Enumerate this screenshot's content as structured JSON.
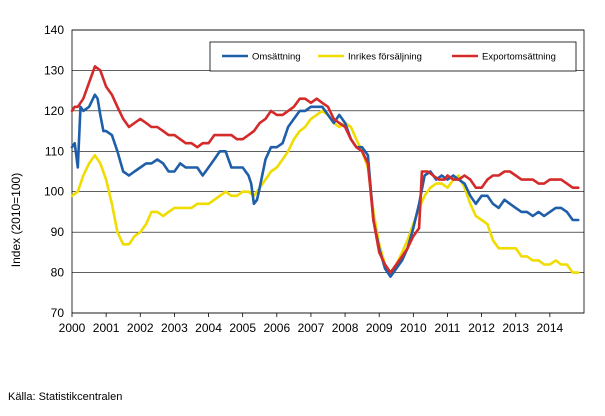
{
  "source_label": "Källa: Statistikcentralen",
  "chart_data": {
    "type": "line",
    "title": "",
    "xlabel": "",
    "ylabel": "Index (2010=100)",
    "ylim": [
      70,
      140
    ],
    "yticks": [
      70,
      80,
      90,
      100,
      110,
      120,
      130,
      140
    ],
    "xlim": [
      2000,
      2015
    ],
    "xticks": [
      2000,
      2001,
      2002,
      2003,
      2004,
      2005,
      2006,
      2007,
      2008,
      2009,
      2010,
      2011,
      2012,
      2013,
      2014
    ],
    "grid": "horizontal",
    "legend_placement": "top-right",
    "series": [
      {
        "name": "Omsättning",
        "color": "#1f5ea8",
        "points": [
          [
            2000.0,
            111
          ],
          [
            2000.08,
            112
          ],
          [
            2000.17,
            106
          ],
          [
            2000.25,
            121
          ],
          [
            2000.33,
            120
          ],
          [
            2000.5,
            121
          ],
          [
            2000.67,
            124
          ],
          [
            2000.75,
            123
          ],
          [
            2000.83,
            119
          ],
          [
            2000.92,
            115
          ],
          [
            2001.0,
            115
          ],
          [
            2001.17,
            114
          ],
          [
            2001.33,
            110
          ],
          [
            2001.5,
            105
          ],
          [
            2001.67,
            104
          ],
          [
            2001.83,
            105
          ],
          [
            2002.0,
            106
          ],
          [
            2002.17,
            107
          ],
          [
            2002.33,
            107
          ],
          [
            2002.5,
            108
          ],
          [
            2002.67,
            107
          ],
          [
            2002.83,
            105
          ],
          [
            2003.0,
            105
          ],
          [
            2003.17,
            107
          ],
          [
            2003.33,
            106
          ],
          [
            2003.5,
            106
          ],
          [
            2003.67,
            106
          ],
          [
            2003.83,
            104
          ],
          [
            2004.0,
            106
          ],
          [
            2004.17,
            108
          ],
          [
            2004.33,
            110
          ],
          [
            2004.5,
            110
          ],
          [
            2004.67,
            106
          ],
          [
            2004.83,
            106
          ],
          [
            2005.0,
            106
          ],
          [
            2005.17,
            104
          ],
          [
            2005.25,
            102
          ],
          [
            2005.33,
            97
          ],
          [
            2005.42,
            98
          ],
          [
            2005.5,
            101
          ],
          [
            2005.67,
            108
          ],
          [
            2005.83,
            111
          ],
          [
            2006.0,
            111
          ],
          [
            2006.17,
            112
          ],
          [
            2006.33,
            116
          ],
          [
            2006.5,
            118
          ],
          [
            2006.67,
            120
          ],
          [
            2006.83,
            120
          ],
          [
            2007.0,
            121
          ],
          [
            2007.17,
            121
          ],
          [
            2007.33,
            121
          ],
          [
            2007.5,
            119
          ],
          [
            2007.67,
            117
          ],
          [
            2007.83,
            119
          ],
          [
            2008.0,
            117
          ],
          [
            2008.17,
            113
          ],
          [
            2008.33,
            111
          ],
          [
            2008.5,
            111
          ],
          [
            2008.67,
            109
          ],
          [
            2008.83,
            93
          ],
          [
            2009.0,
            86
          ],
          [
            2009.17,
            81
          ],
          [
            2009.33,
            79
          ],
          [
            2009.5,
            81
          ],
          [
            2009.67,
            83
          ],
          [
            2009.83,
            86
          ],
          [
            2010.0,
            91
          ],
          [
            2010.17,
            97
          ],
          [
            2010.33,
            104
          ],
          [
            2010.5,
            105
          ],
          [
            2010.67,
            103
          ],
          [
            2010.83,
            104
          ],
          [
            2011.0,
            103
          ],
          [
            2011.17,
            104
          ],
          [
            2011.33,
            103
          ],
          [
            2011.5,
            102
          ],
          [
            2011.67,
            99
          ],
          [
            2011.83,
            97
          ],
          [
            2012.0,
            99
          ],
          [
            2012.17,
            99
          ],
          [
            2012.33,
            97
          ],
          [
            2012.5,
            96
          ],
          [
            2012.67,
            98
          ],
          [
            2012.83,
            97
          ],
          [
            2013.0,
            96
          ],
          [
            2013.17,
            95
          ],
          [
            2013.33,
            95
          ],
          [
            2013.5,
            94
          ],
          [
            2013.67,
            95
          ],
          [
            2013.83,
            94
          ],
          [
            2014.0,
            95
          ],
          [
            2014.17,
            96
          ],
          [
            2014.33,
            96
          ],
          [
            2014.5,
            95
          ],
          [
            2014.67,
            93
          ],
          [
            2014.83,
            93
          ]
        ]
      },
      {
        "name": "Inrikes försäljning",
        "color": "#f0dc00",
        "points": [
          [
            2000.0,
            99
          ],
          [
            2000.17,
            100
          ],
          [
            2000.33,
            104
          ],
          [
            2000.5,
            107
          ],
          [
            2000.67,
            109
          ],
          [
            2000.83,
            107
          ],
          [
            2001.0,
            103
          ],
          [
            2001.17,
            97
          ],
          [
            2001.33,
            90
          ],
          [
            2001.5,
            87
          ],
          [
            2001.67,
            87
          ],
          [
            2001.83,
            89
          ],
          [
            2002.0,
            90
          ],
          [
            2002.17,
            92
          ],
          [
            2002.33,
            95
          ],
          [
            2002.5,
            95
          ],
          [
            2002.67,
            94
          ],
          [
            2002.83,
            95
          ],
          [
            2003.0,
            96
          ],
          [
            2003.17,
            96
          ],
          [
            2003.33,
            96
          ],
          [
            2003.5,
            96
          ],
          [
            2003.67,
            97
          ],
          [
            2003.83,
            97
          ],
          [
            2004.0,
            97
          ],
          [
            2004.17,
            98
          ],
          [
            2004.33,
            99
          ],
          [
            2004.5,
            100
          ],
          [
            2004.67,
            99
          ],
          [
            2004.83,
            99
          ],
          [
            2005.0,
            100
          ],
          [
            2005.17,
            100
          ],
          [
            2005.33,
            99
          ],
          [
            2005.5,
            101
          ],
          [
            2005.67,
            103
          ],
          [
            2005.83,
            105
          ],
          [
            2006.0,
            106
          ],
          [
            2006.17,
            108
          ],
          [
            2006.33,
            110
          ],
          [
            2006.5,
            113
          ],
          [
            2006.67,
            115
          ],
          [
            2006.83,
            116
          ],
          [
            2007.0,
            118
          ],
          [
            2007.17,
            119
          ],
          [
            2007.33,
            120
          ],
          [
            2007.5,
            119
          ],
          [
            2007.67,
            117
          ],
          [
            2007.83,
            116
          ],
          [
            2008.0,
            117
          ],
          [
            2008.17,
            116
          ],
          [
            2008.33,
            113
          ],
          [
            2008.5,
            110
          ],
          [
            2008.67,
            106
          ],
          [
            2008.83,
            95
          ],
          [
            2009.0,
            87
          ],
          [
            2009.17,
            82
          ],
          [
            2009.33,
            80
          ],
          [
            2009.5,
            82
          ],
          [
            2009.67,
            85
          ],
          [
            2009.83,
            88
          ],
          [
            2010.0,
            92
          ],
          [
            2010.17,
            96
          ],
          [
            2010.33,
            99
          ],
          [
            2010.5,
            101
          ],
          [
            2010.67,
            102
          ],
          [
            2010.83,
            102
          ],
          [
            2011.0,
            101
          ],
          [
            2011.17,
            103
          ],
          [
            2011.33,
            104
          ],
          [
            2011.5,
            101
          ],
          [
            2011.67,
            97
          ],
          [
            2011.83,
            94
          ],
          [
            2012.0,
            93
          ],
          [
            2012.17,
            92
          ],
          [
            2012.33,
            88
          ],
          [
            2012.5,
            86
          ],
          [
            2012.67,
            86
          ],
          [
            2012.83,
            86
          ],
          [
            2013.0,
            86
          ],
          [
            2013.17,
            84
          ],
          [
            2013.33,
            84
          ],
          [
            2013.5,
            83
          ],
          [
            2013.67,
            83
          ],
          [
            2013.83,
            82
          ],
          [
            2014.0,
            82
          ],
          [
            2014.17,
            83
          ],
          [
            2014.33,
            82
          ],
          [
            2014.5,
            82
          ],
          [
            2014.67,
            80
          ],
          [
            2014.83,
            80
          ]
        ]
      },
      {
        "name": "Exportomsättning",
        "color": "#d42a2a",
        "points": [
          [
            2000.0,
            120
          ],
          [
            2000.08,
            121
          ],
          [
            2000.17,
            121
          ],
          [
            2000.33,
            123
          ],
          [
            2000.5,
            127
          ],
          [
            2000.67,
            131
          ],
          [
            2000.83,
            130
          ],
          [
            2001.0,
            126
          ],
          [
            2001.17,
            124
          ],
          [
            2001.33,
            121
          ],
          [
            2001.5,
            118
          ],
          [
            2001.67,
            116
          ],
          [
            2001.83,
            117
          ],
          [
            2002.0,
            118
          ],
          [
            2002.17,
            117
          ],
          [
            2002.33,
            116
          ],
          [
            2002.5,
            116
          ],
          [
            2002.67,
            115
          ],
          [
            2002.83,
            114
          ],
          [
            2003.0,
            114
          ],
          [
            2003.17,
            113
          ],
          [
            2003.33,
            112
          ],
          [
            2003.5,
            112
          ],
          [
            2003.67,
            111
          ],
          [
            2003.83,
            112
          ],
          [
            2004.0,
            112
          ],
          [
            2004.17,
            114
          ],
          [
            2004.33,
            114
          ],
          [
            2004.5,
            114
          ],
          [
            2004.67,
            114
          ],
          [
            2004.83,
            113
          ],
          [
            2005.0,
            113
          ],
          [
            2005.17,
            114
          ],
          [
            2005.33,
            115
          ],
          [
            2005.5,
            117
          ],
          [
            2005.67,
            118
          ],
          [
            2005.83,
            120
          ],
          [
            2006.0,
            119
          ],
          [
            2006.17,
            119
          ],
          [
            2006.33,
            120
          ],
          [
            2006.5,
            121
          ],
          [
            2006.67,
            123
          ],
          [
            2006.83,
            123
          ],
          [
            2007.0,
            122
          ],
          [
            2007.17,
            123
          ],
          [
            2007.33,
            122
          ],
          [
            2007.5,
            121
          ],
          [
            2007.67,
            118
          ],
          [
            2007.83,
            117
          ],
          [
            2008.0,
            116
          ],
          [
            2008.17,
            113
          ],
          [
            2008.33,
            111
          ],
          [
            2008.5,
            110
          ],
          [
            2008.67,
            107
          ],
          [
            2008.83,
            93
          ],
          [
            2009.0,
            85
          ],
          [
            2009.17,
            82
          ],
          [
            2009.33,
            80
          ],
          [
            2009.5,
            82
          ],
          [
            2009.67,
            84
          ],
          [
            2009.83,
            86
          ],
          [
            2010.0,
            89
          ],
          [
            2010.17,
            91
          ],
          [
            2010.25,
            105
          ],
          [
            2010.42,
            105
          ],
          [
            2010.58,
            104
          ],
          [
            2010.75,
            103
          ],
          [
            2010.92,
            103
          ],
          [
            2011.0,
            104
          ],
          [
            2011.17,
            103
          ],
          [
            2011.33,
            103
          ],
          [
            2011.5,
            104
          ],
          [
            2011.67,
            103
          ],
          [
            2011.83,
            101
          ],
          [
            2012.0,
            101
          ],
          [
            2012.17,
            103
          ],
          [
            2012.33,
            104
          ],
          [
            2012.5,
            104
          ],
          [
            2012.67,
            105
          ],
          [
            2012.83,
            105
          ],
          [
            2013.0,
            104
          ],
          [
            2013.17,
            103
          ],
          [
            2013.33,
            103
          ],
          [
            2013.5,
            103
          ],
          [
            2013.67,
            102
          ],
          [
            2013.83,
            102
          ],
          [
            2014.0,
            103
          ],
          [
            2014.17,
            103
          ],
          [
            2014.33,
            103
          ],
          [
            2014.5,
            102
          ],
          [
            2014.67,
            101
          ],
          [
            2014.83,
            101
          ]
        ]
      }
    ]
  }
}
